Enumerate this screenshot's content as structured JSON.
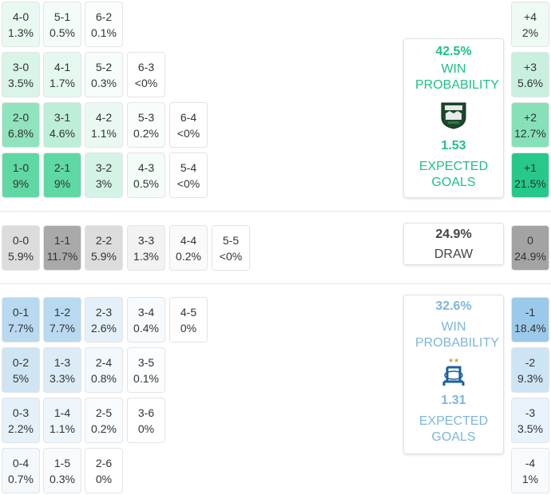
{
  "home_team": {
    "win_pct": "42.5%",
    "win_label": "WIN PROBABILITY",
    "xg": "1.53",
    "xg_label": "EXPECTED GOALS",
    "logo_icon": "krasnodar-crest-icon",
    "accent": "#1ec283",
    "scores": [
      {
        "score": "4-0",
        "pct": "1.3%",
        "bg": "#e8f9f1"
      },
      {
        "score": "5-1",
        "pct": "0.5%",
        "bg": "#f3fcf8"
      },
      {
        "score": "6-2",
        "pct": "0.1%",
        "bg": "#fbfefd"
      },
      {
        "score": "3-0",
        "pct": "3.5%",
        "bg": "#d8f5e8"
      },
      {
        "score": "4-1",
        "pct": "1.7%",
        "bg": "#e5f8ef"
      },
      {
        "score": "5-2",
        "pct": "0.3%",
        "bg": "#f6fcf9"
      },
      {
        "score": "6-3",
        "pct": "<0%",
        "bg": "#ffffff"
      },
      {
        "score": "2-0",
        "pct": "6.8%",
        "bg": "#8fe3bd"
      },
      {
        "score": "3-1",
        "pct": "4.6%",
        "bg": "#bdeed7"
      },
      {
        "score": "4-2",
        "pct": "1.1%",
        "bg": "#e9f9f2"
      },
      {
        "score": "5-3",
        "pct": "0.2%",
        "bg": "#f8fdfb"
      },
      {
        "score": "6-4",
        "pct": "<0%",
        "bg": "#ffffff"
      },
      {
        "score": "1-0",
        "pct": "9%",
        "bg": "#5fd8a3"
      },
      {
        "score": "2-1",
        "pct": "9%",
        "bg": "#5fd8a3"
      },
      {
        "score": "3-2",
        "pct": "3%",
        "bg": "#d3f3e5"
      },
      {
        "score": "4-3",
        "pct": "0.5%",
        "bg": "#f4fcf8"
      },
      {
        "score": "5-4",
        "pct": "<0%",
        "bg": "#ffffff"
      }
    ],
    "margins": [
      {
        "label": "+4",
        "pct": "2%",
        "bg": "#eefaf4"
      },
      {
        "label": "+3",
        "pct": "5.6%",
        "bg": "#c9f0de"
      },
      {
        "label": "+2",
        "pct": "12.7%",
        "bg": "#86e1b8"
      },
      {
        "label": "+1",
        "pct": "21.5%",
        "bg": "#26c98a"
      }
    ]
  },
  "draw": {
    "pct": "24.9%",
    "label": "DRAW",
    "scores": [
      {
        "score": "0-0",
        "pct": "5.9%",
        "bg": "#dcdcdc"
      },
      {
        "score": "1-1",
        "pct": "11.7%",
        "bg": "#a9a9a9"
      },
      {
        "score": "2-2",
        "pct": "5.9%",
        "bg": "#dcdcdc"
      },
      {
        "score": "3-3",
        "pct": "1.3%",
        "bg": "#f2f2f2"
      },
      {
        "score": "4-4",
        "pct": "0.2%",
        "bg": "#fafafa"
      },
      {
        "score": "5-5",
        "pct": "<0%",
        "bg": "#ffffff"
      }
    ],
    "margin": {
      "label": "0",
      "pct": "24.9%",
      "bg": "#a3a3a3"
    }
  },
  "away_team": {
    "win_pct": "32.6%",
    "win_label": "WIN PROBABILITY",
    "xg": "1.31",
    "xg_label": "EXPECTED GOALS",
    "logo_icon": "dynamo-crest-icon",
    "accent": "#7eb6da",
    "scores": [
      {
        "score": "0-1",
        "pct": "7.7%",
        "bg": "#b8d9ef"
      },
      {
        "score": "1-2",
        "pct": "7.7%",
        "bg": "#b8d9ef"
      },
      {
        "score": "2-3",
        "pct": "2.6%",
        "bg": "#e3f0f9"
      },
      {
        "score": "3-4",
        "pct": "0.4%",
        "bg": "#f7fbfd"
      },
      {
        "score": "4-5",
        "pct": "0%",
        "bg": "#ffffff"
      },
      {
        "score": "0-2",
        "pct": "5%",
        "bg": "#cfe5f4"
      },
      {
        "score": "1-3",
        "pct": "3.3%",
        "bg": "#dcecf7"
      },
      {
        "score": "2-4",
        "pct": "0.8%",
        "bg": "#f2f8fc"
      },
      {
        "score": "3-5",
        "pct": "0.1%",
        "bg": "#fbfdfe"
      },
      {
        "score": "0-3",
        "pct": "2.2%",
        "bg": "#e5f1f9"
      },
      {
        "score": "1-4",
        "pct": "1.1%",
        "bg": "#eef5fb"
      },
      {
        "score": "2-5",
        "pct": "0.2%",
        "bg": "#f9fcfe"
      },
      {
        "score": "3-6",
        "pct": "0%",
        "bg": "#ffffff"
      },
      {
        "score": "0-4",
        "pct": "0.7%",
        "bg": "#f3f8fc"
      },
      {
        "score": "1-5",
        "pct": "0.3%",
        "bg": "#f8fbfd"
      },
      {
        "score": "2-6",
        "pct": "0%",
        "bg": "#ffffff"
      }
    ],
    "margins": [
      {
        "label": "-1",
        "pct": "18.4%",
        "bg": "#9bc9ea"
      },
      {
        "label": "-2",
        "pct": "9.3%",
        "bg": "#cde4f4"
      },
      {
        "label": "-3",
        "pct": "3.5%",
        "bg": "#e8f2fa"
      },
      {
        "label": "-4",
        "pct": "1%",
        "bg": "#f8fbfd"
      }
    ]
  }
}
